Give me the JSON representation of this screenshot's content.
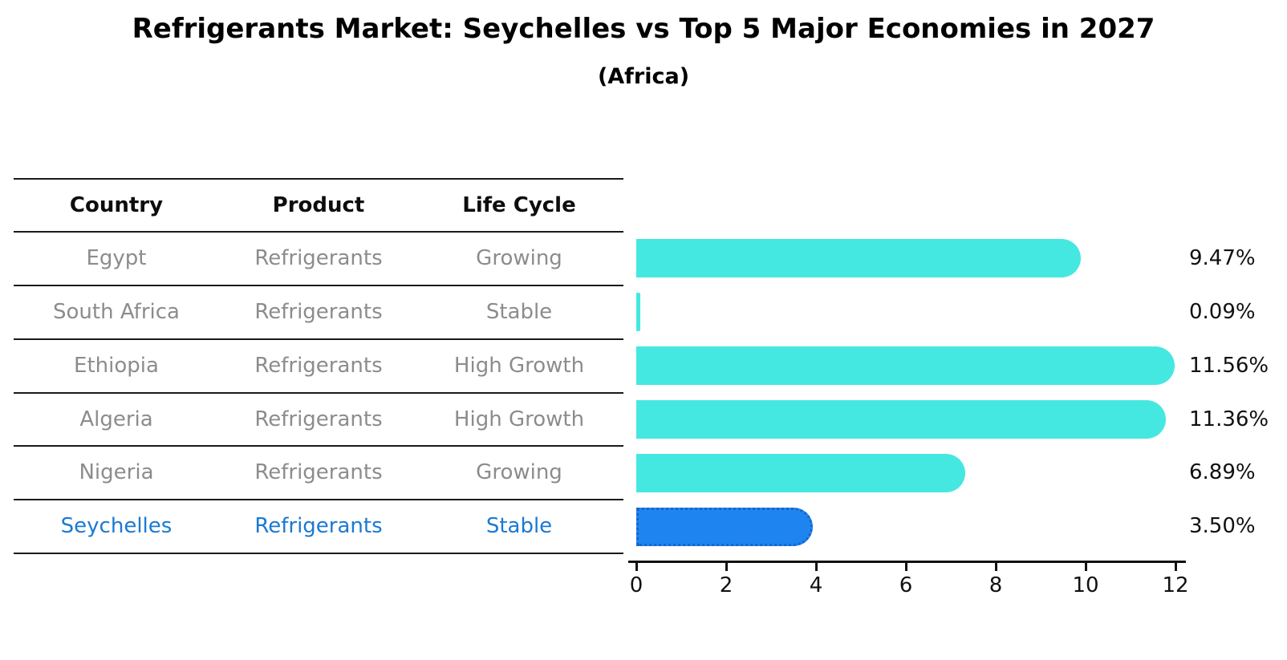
{
  "title": "Refrigerants Market: Seychelles vs Top 5 Major Economies in 2027",
  "subtitle": "(Africa)",
  "table": {
    "columns": [
      "Country",
      "Product",
      "Life Cycle"
    ],
    "rows": [
      {
        "country": "Egypt",
        "product": "Refrigerants",
        "life_cycle": "Growing",
        "highlight": false
      },
      {
        "country": "South Africa",
        "product": "Refrigerants",
        "life_cycle": "Stable",
        "highlight": false
      },
      {
        "country": "Ethiopia",
        "product": "Refrigerants",
        "life_cycle": "High Growth",
        "highlight": false
      },
      {
        "country": "Algeria",
        "product": "Refrigerants",
        "life_cycle": "High Growth",
        "highlight": false
      },
      {
        "country": "Nigeria",
        "product": "Refrigerants",
        "life_cycle": "Growing",
        "highlight": false
      },
      {
        "country": "Seychelles",
        "product": "Refrigerants",
        "life_cycle": "Stable",
        "highlight": true
      }
    ]
  },
  "chart_data": {
    "type": "bar",
    "orientation": "horizontal",
    "categories": [
      "Egypt",
      "South Africa",
      "Ethiopia",
      "Algeria",
      "Nigeria",
      "Seychelles"
    ],
    "values": [
      9.47,
      0.09,
      11.56,
      11.36,
      6.89,
      3.5
    ],
    "value_labels": [
      "9.47%",
      "0.09%",
      "11.56%",
      "11.36%",
      "6.89%",
      "3.50%"
    ],
    "title": "Refrigerants Market: Seychelles vs Top 5 Major Economies in 2027",
    "subtitle": "(Africa)",
    "xlabel": "",
    "ylabel": "",
    "xlim": [
      0,
      12
    ],
    "x_ticks": [
      0,
      2,
      4,
      6,
      8,
      10,
      12
    ],
    "grid": false,
    "legend": false,
    "bar_color": "#45E8E0",
    "highlight_color": "#1E85F0",
    "highlight_border_color": "#1565D0",
    "highlight_index": 5,
    "highlight_text_color": "#1C79D2",
    "row_text_color": "#8C8C8C"
  }
}
